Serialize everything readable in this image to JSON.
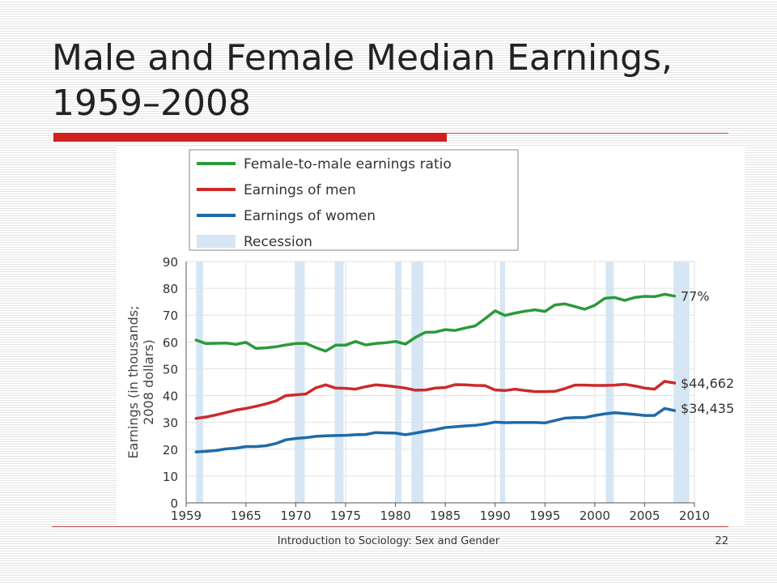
{
  "slide": {
    "title": "Male and Female Median Earnings, 1959–2008",
    "footer": "Introduction to Sociology: Sex and Gender",
    "page_number": "22"
  },
  "colors": {
    "ratio": "#2a9a3a",
    "men": "#cc2a2a",
    "women": "#1f6aa8",
    "recession": "#d6e6f4",
    "accent_red": "#d02020"
  },
  "chart_data": {
    "type": "line",
    "ylabel": "Earnings (in thousands; 2008 dollars)",
    "xlabel": "",
    "xlim": [
      1959,
      2010
    ],
    "ylim": [
      0,
      90
    ],
    "x_ticks": [
      "1959",
      "1965",
      "1970",
      "1975",
      "1980",
      "1985",
      "1990",
      "1995",
      "2000",
      "2005",
      "2010"
    ],
    "y_ticks": [
      "0",
      "10",
      "20",
      "30",
      "40",
      "50",
      "60",
      "70",
      "80",
      "90"
    ],
    "grid": true,
    "legend": {
      "position": "top-left",
      "items": [
        {
          "key": "ratio",
          "label": "Female-to-male earnings ratio",
          "color": "#2a9a3a"
        },
        {
          "key": "men",
          "label": "Earnings of men",
          "color": "#cc2a2a"
        },
        {
          "key": "women",
          "label": "Earnings of women",
          "color": "#1f6aa8"
        },
        {
          "key": "recession",
          "label": "Recession",
          "color": "#d6e6f4"
        }
      ]
    },
    "recessions": [
      [
        1960,
        1960.7
      ],
      [
        1969.9,
        1970.9
      ],
      [
        1973.9,
        1974.8
      ],
      [
        1980.0,
        1980.6
      ],
      [
        1981.6,
        1982.8
      ],
      [
        1990.5,
        1991.0
      ],
      [
        2001.1,
        2001.9
      ],
      [
        2007.9,
        2009.5
      ]
    ],
    "series": [
      {
        "key": "ratio",
        "name": "Female-to-male earnings ratio",
        "color": "#2a9a3a",
        "end_label": "77%",
        "x": [
          1960,
          1961,
          1962,
          1963,
          1964,
          1965,
          1966,
          1967,
          1968,
          1969,
          1970,
          1971,
          1972,
          1973,
          1974,
          1975,
          1976,
          1977,
          1978,
          1979,
          1980,
          1981,
          1982,
          1983,
          1984,
          1985,
          1986,
          1987,
          1988,
          1989,
          1990,
          1991,
          1992,
          1993,
          1994,
          1995,
          1996,
          1997,
          1998,
          1999,
          2000,
          2001,
          2002,
          2003,
          2004,
          2005,
          2006,
          2007,
          2008
        ],
        "y": [
          60.7,
          59.4,
          59.5,
          59.6,
          59.1,
          59.9,
          57.6,
          57.8,
          58.2,
          58.9,
          59.4,
          59.5,
          57.9,
          56.6,
          58.8,
          58.8,
          60.2,
          58.9,
          59.4,
          59.7,
          60.2,
          59.2,
          61.7,
          63.6,
          63.7,
          64.6,
          64.3,
          65.2,
          66.0,
          68.7,
          71.6,
          69.9,
          70.8,
          71.5,
          72.0,
          71.4,
          73.8,
          74.2,
          73.2,
          72.2,
          73.7,
          76.3,
          76.6,
          75.5,
          76.6,
          77.0,
          76.9,
          77.8,
          77.1
        ]
      },
      {
        "key": "men",
        "name": "Earnings of men",
        "color": "#cc2a2a",
        "end_label": "$44,662",
        "x": [
          1960,
          1961,
          1962,
          1963,
          1964,
          1965,
          1966,
          1967,
          1968,
          1969,
          1970,
          1971,
          1972,
          1973,
          1974,
          1975,
          1976,
          1977,
          1978,
          1979,
          1980,
          1981,
          1982,
          1983,
          1984,
          1985,
          1986,
          1987,
          1988,
          1989,
          1990,
          1991,
          1992,
          1993,
          1994,
          1995,
          1996,
          1997,
          1998,
          1999,
          2000,
          2001,
          2002,
          2003,
          2004,
          2005,
          2006,
          2007,
          2008
        ],
        "y": [
          31.5,
          32.0,
          32.8,
          33.7,
          34.6,
          35.2,
          36.0,
          36.9,
          38.0,
          40.0,
          40.3,
          40.6,
          42.9,
          44.0,
          42.8,
          42.7,
          42.4,
          43.3,
          44.0,
          43.7,
          43.3,
          42.8,
          42.0,
          42.1,
          42.8,
          43.0,
          44.1,
          44.0,
          43.8,
          43.7,
          42.1,
          41.9,
          42.4,
          41.9,
          41.5,
          41.5,
          41.6,
          42.6,
          43.9,
          43.9,
          43.8,
          43.8,
          43.9,
          44.2,
          43.6,
          42.8,
          42.4,
          45.3,
          44.7
        ]
      },
      {
        "key": "women",
        "name": "Earnings of women",
        "color": "#1f6aa8",
        "end_label": "$34,435",
        "x": [
          1960,
          1961,
          1962,
          1963,
          1964,
          1965,
          1966,
          1967,
          1968,
          1969,
          1970,
          1971,
          1972,
          1973,
          1974,
          1975,
          1976,
          1977,
          1978,
          1979,
          1980,
          1981,
          1982,
          1983,
          1984,
          1985,
          1986,
          1987,
          1988,
          1989,
          1990,
          1991,
          1992,
          1993,
          1994,
          1995,
          1996,
          1997,
          1998,
          1999,
          2000,
          2001,
          2002,
          2003,
          2004,
          2005,
          2006,
          2007,
          2008
        ],
        "y": [
          19.0,
          19.2,
          19.5,
          20.1,
          20.4,
          21.0,
          21.0,
          21.3,
          22.1,
          23.5,
          24.0,
          24.3,
          24.8,
          25.0,
          25.1,
          25.2,
          25.4,
          25.5,
          26.2,
          26.1,
          26.0,
          25.4,
          26.0,
          26.7,
          27.3,
          28.1,
          28.4,
          28.7,
          28.9,
          29.4,
          30.1,
          29.9,
          30.0,
          30.0,
          30.0,
          29.8,
          30.7,
          31.6,
          31.8,
          31.8,
          32.6,
          33.2,
          33.6,
          33.3,
          33.0,
          32.6,
          32.6,
          35.2,
          34.4
        ]
      }
    ]
  }
}
